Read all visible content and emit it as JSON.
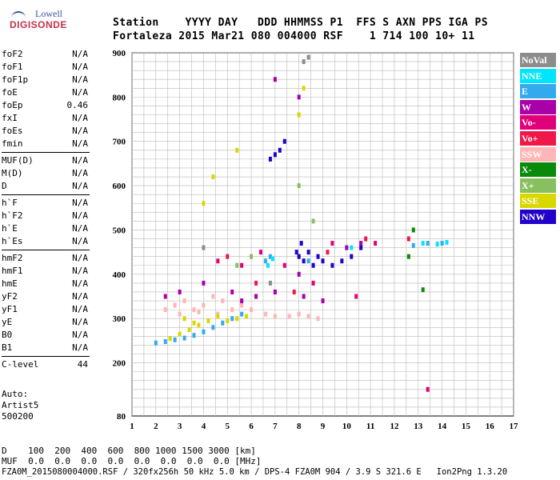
{
  "logo": {
    "line1": "Lowell",
    "line2": "DIGISONDE"
  },
  "header": {
    "labels": "Station    YYYY DAY   DDD HHMMSS P1  FFS S AXN PPS IGA PS",
    "values": "Fortaleza 2015 Mar21 080 004000 RSF    1 714 100 10+ 11"
  },
  "params": [
    {
      "name": "foF2",
      "value": "N/A"
    },
    {
      "name": "foF1",
      "value": "N/A"
    },
    {
      "name": "foF1p",
      "value": "N/A"
    },
    {
      "name": "foE",
      "value": "N/A"
    },
    {
      "name": "foEp",
      "value": "0.46"
    },
    {
      "name": "fxI",
      "value": "N/A"
    },
    {
      "name": "foEs",
      "value": "N/A"
    },
    {
      "name": "fmin",
      "value": "N/A"
    },
    {
      "sep": true
    },
    {
      "name": "MUF(D)",
      "value": "N/A"
    },
    {
      "name": "M(D)",
      "value": "N/A"
    },
    {
      "name": "D",
      "value": "N/A"
    },
    {
      "sep": true
    },
    {
      "name": "h`F",
      "value": "N/A"
    },
    {
      "name": "h`F2",
      "value": "N/A"
    },
    {
      "name": "h`E",
      "value": "N/A"
    },
    {
      "name": "h`Es",
      "value": "N/A"
    },
    {
      "sep": true
    },
    {
      "name": "hmF2",
      "value": "N/A"
    },
    {
      "name": "hmF1",
      "value": "N/A"
    },
    {
      "name": "hmE",
      "value": "N/A"
    },
    {
      "name": "yF2",
      "value": "N/A"
    },
    {
      "name": "yF1",
      "value": "N/A"
    },
    {
      "name": "yE",
      "value": "N/A"
    },
    {
      "name": "B0",
      "value": "N/A"
    },
    {
      "name": "B1",
      "value": "N/A"
    },
    {
      "sep": true
    },
    {
      "name": "C-level",
      "value": "44"
    }
  ],
  "auto": {
    "line1": "Auto:",
    "line2": "Artist5",
    "line3": "500200"
  },
  "legend": [
    {
      "label": "NoVal",
      "color": "#8c8c8c"
    },
    {
      "label": "NNE",
      "color": "#00e5ff"
    },
    {
      "label": "E",
      "color": "#33aaee"
    },
    {
      "label": "W",
      "color": "#aa00aa"
    },
    {
      "label": "Vo-",
      "color": "#e0007a"
    },
    {
      "label": "Vo+",
      "color": "#f01848"
    },
    {
      "label": "SSW",
      "color": "#ffb6b6"
    },
    {
      "label": "X-",
      "color": "#0a8a0a"
    },
    {
      "label": "X+",
      "color": "#88c060"
    },
    {
      "label": "SSE",
      "color": "#d8d800"
    },
    {
      "label": "NNW",
      "color": "#2200cc"
    }
  ],
  "footer": {
    "d_row": "D    100  200  400  600  800 1000 1500 3000 [km]",
    "muf_row": "MUF  0.0  0.0  0.0  0.0  0.0  0.0  0.0  0.0 [MHz]",
    "file_line": "FZA0M_2015080004000.RSF / 320fx256h 50 kHz 5.0 km / DPS-4 FZA0M 904 / 3.9 S 321.6 E   Ion2Png 1.3.20"
  },
  "chart_data": {
    "type": "scatter",
    "xlim": [
      1,
      17
    ],
    "ylim": [
      80,
      900
    ],
    "xticks": [
      1,
      2,
      3,
      4,
      5,
      6,
      7,
      8,
      9,
      10,
      11,
      12,
      13,
      14,
      15,
      16,
      17
    ],
    "yticks": [
      80,
      200,
      300,
      400,
      500,
      600,
      700,
      800,
      900
    ],
    "grid": true,
    "legend_position": "right",
    "series": [
      {
        "name": "SSW",
        "points": [
          [
            2.4,
            320
          ],
          [
            2.8,
            330
          ],
          [
            3.2,
            340
          ],
          [
            3.6,
            320
          ],
          [
            4.0,
            330
          ],
          [
            4.4,
            350
          ],
          [
            4.8,
            340
          ],
          [
            5.2,
            320
          ],
          [
            5.6,
            330
          ],
          [
            6.0,
            320
          ],
          [
            6.6,
            310
          ],
          [
            7.0,
            305
          ],
          [
            7.6,
            305
          ],
          [
            8.0,
            310
          ],
          [
            8.4,
            305
          ],
          [
            8.8,
            300
          ],
          [
            3.0,
            310
          ],
          [
            3.8,
            315
          ],
          [
            4.6,
            310
          ]
        ]
      },
      {
        "name": "SSE",
        "points": [
          [
            2.6,
            255
          ],
          [
            3.0,
            265
          ],
          [
            3.4,
            275
          ],
          [
            3.8,
            285
          ],
          [
            4.2,
            295
          ],
          [
            4.6,
            305
          ],
          [
            5.0,
            295
          ],
          [
            5.4,
            300
          ],
          [
            5.8,
            305
          ],
          [
            4.0,
            560
          ],
          [
            4.4,
            620
          ],
          [
            5.4,
            680
          ],
          [
            8.0,
            760
          ],
          [
            8.2,
            820
          ],
          [
            3.2,
            300
          ],
          [
            3.6,
            290
          ]
        ]
      },
      {
        "name": "E",
        "points": [
          [
            2.0,
            245
          ],
          [
            2.4,
            248
          ],
          [
            2.8,
            252
          ],
          [
            3.2,
            256
          ],
          [
            3.6,
            262
          ],
          [
            4.0,
            270
          ],
          [
            4.4,
            280
          ],
          [
            4.8,
            290
          ],
          [
            5.2,
            300
          ],
          [
            5.6,
            310
          ],
          [
            6.6,
            430
          ],
          [
            6.8,
            440
          ],
          [
            8.4,
            430
          ],
          [
            12.8,
            465
          ],
          [
            13.4,
            470
          ],
          [
            14.0,
            470
          ]
        ]
      },
      {
        "name": "NNE",
        "points": [
          [
            6.7,
            420
          ],
          [
            6.9,
            435
          ],
          [
            10.2,
            460
          ],
          [
            13.2,
            470
          ],
          [
            13.8,
            468
          ],
          [
            14.2,
            472
          ]
        ]
      },
      {
        "name": "NNW",
        "points": [
          [
            7.0,
            670
          ],
          [
            7.2,
            680
          ],
          [
            6.8,
            660
          ],
          [
            7.4,
            700
          ],
          [
            8.0,
            440
          ],
          [
            8.2,
            430
          ],
          [
            8.4,
            450
          ],
          [
            8.6,
            420
          ],
          [
            8.8,
            440
          ],
          [
            9.0,
            430
          ],
          [
            9.4,
            420
          ],
          [
            9.8,
            430
          ],
          [
            10.2,
            440
          ],
          [
            10.6,
            460
          ],
          [
            7.9,
            450
          ],
          [
            8.1,
            470
          ]
        ]
      },
      {
        "name": "W",
        "points": [
          [
            2.4,
            350
          ],
          [
            3.0,
            360
          ],
          [
            4.0,
            380
          ],
          [
            5.2,
            360
          ],
          [
            5.6,
            340
          ],
          [
            6.2,
            350
          ],
          [
            7.0,
            360
          ],
          [
            8.0,
            400
          ],
          [
            8.2,
            350
          ],
          [
            9.0,
            340
          ],
          [
            10.0,
            460
          ],
          [
            10.6,
            470
          ],
          [
            7.0,
            840
          ],
          [
            8.0,
            800
          ]
        ]
      },
      {
        "name": "Vo-",
        "points": [
          [
            4.6,
            430
          ],
          [
            5.6,
            420
          ],
          [
            6.4,
            450
          ],
          [
            7.4,
            420
          ],
          [
            8.6,
            380
          ],
          [
            9.4,
            470
          ],
          [
            10.4,
            350
          ],
          [
            11.2,
            470
          ],
          [
            13.4,
            140
          ]
        ]
      },
      {
        "name": "Vo+",
        "points": [
          [
            5.0,
            440
          ],
          [
            6.2,
            380
          ],
          [
            7.8,
            360
          ],
          [
            9.2,
            450
          ],
          [
            10.8,
            480
          ],
          [
            12.6,
            480
          ]
        ]
      },
      {
        "name": "X-",
        "points": [
          [
            12.8,
            500
          ],
          [
            12.6,
            440
          ],
          [
            13.2,
            365
          ]
        ]
      },
      {
        "name": "X+",
        "points": [
          [
            5.4,
            420
          ],
          [
            6.0,
            440
          ],
          [
            8.0,
            600
          ],
          [
            8.6,
            520
          ]
        ]
      },
      {
        "name": "NoVal",
        "points": [
          [
            8.2,
            880
          ],
          [
            8.4,
            890
          ],
          [
            4.0,
            460
          ],
          [
            6.8,
            380
          ]
        ]
      }
    ]
  }
}
